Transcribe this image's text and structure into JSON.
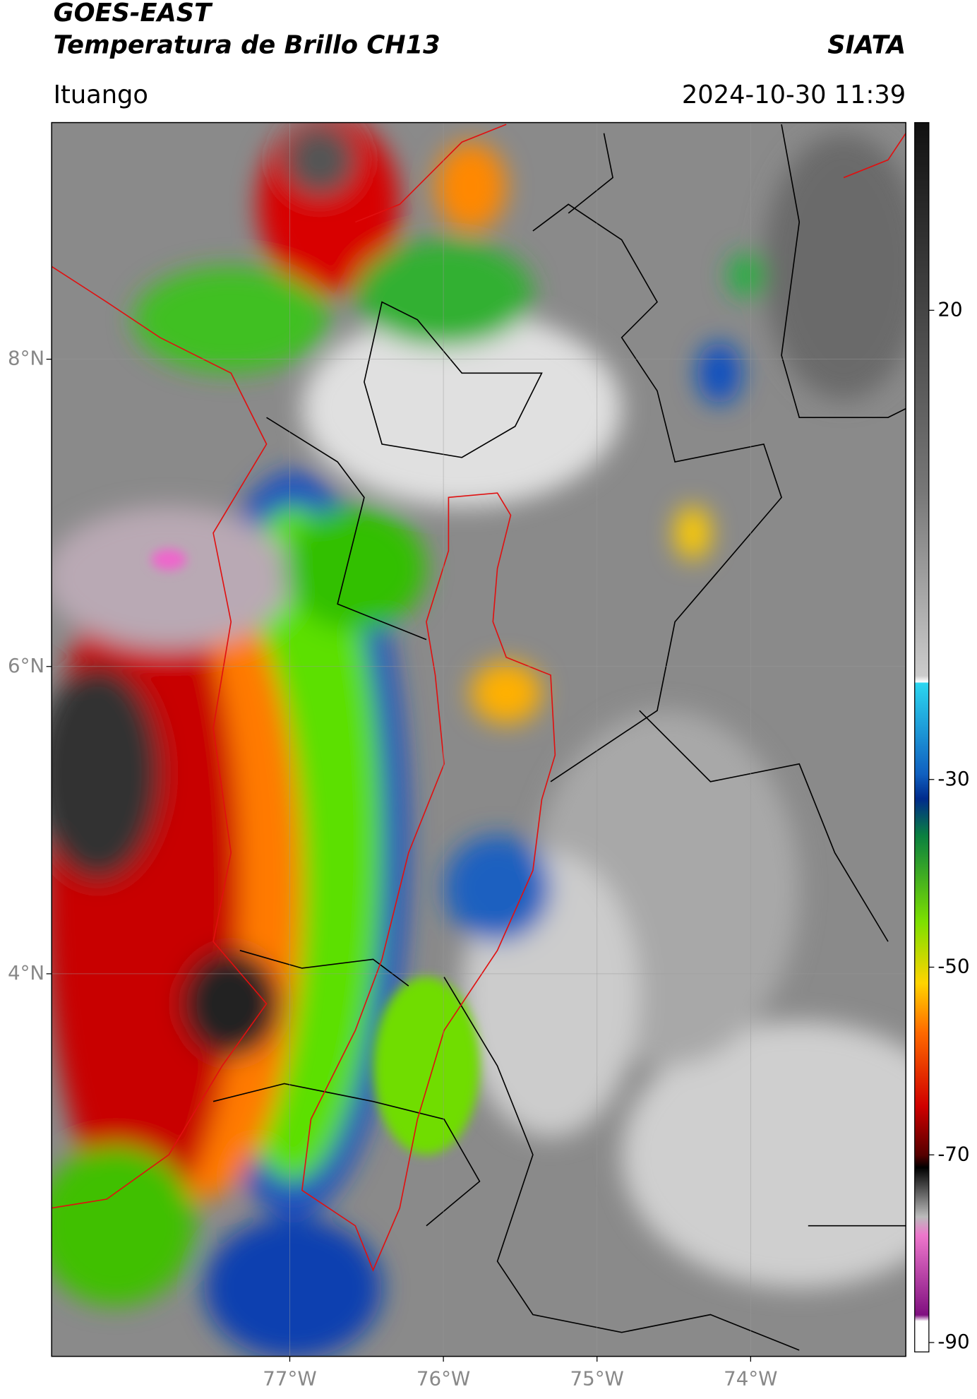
{
  "header": {
    "title": "GOES-EAST",
    "subtitle": "Temperatura de Brillo CH13",
    "agency": "SIATA",
    "location": "Ituango",
    "timestamp": "2024-10-30 11:39"
  },
  "map": {
    "xlim": [
      -78.55,
      -72.99
    ],
    "ylim": [
      1.51,
      9.54
    ],
    "xticks": [
      {
        "value": -77,
        "label": "77°W"
      },
      {
        "value": -76,
        "label": "76°W"
      },
      {
        "value": -75,
        "label": "75°W"
      },
      {
        "value": -74,
        "label": "74°W"
      }
    ],
    "yticks": [
      {
        "value": 8,
        "label": "8°N"
      },
      {
        "value": 6,
        "label": "6°N"
      },
      {
        "value": 4,
        "label": "4°N"
      }
    ]
  },
  "colorbar": {
    "lim": [
      -91,
      40
    ],
    "ticks": [
      20,
      -30,
      -50,
      -70,
      -90
    ]
  }
}
